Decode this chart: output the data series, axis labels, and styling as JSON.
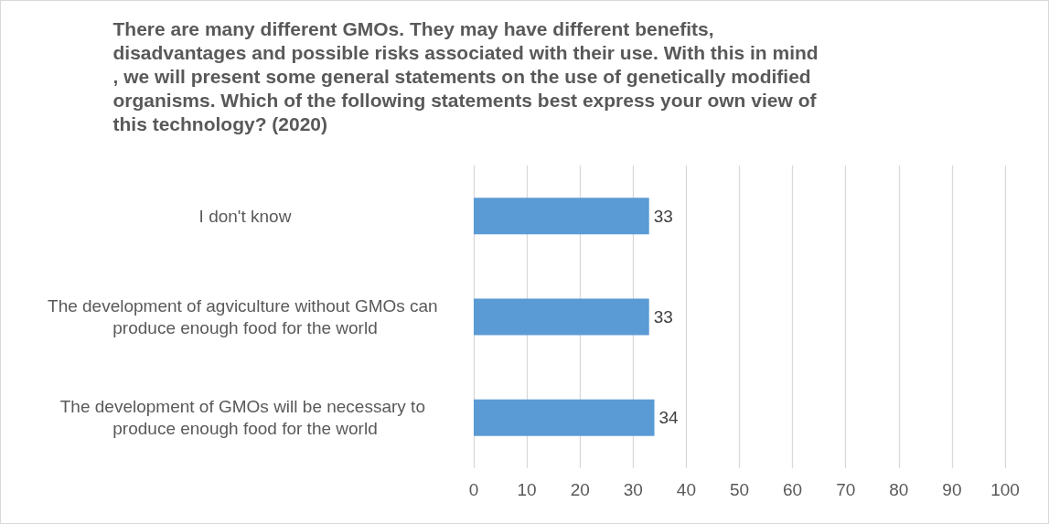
{
  "chart_data": {
    "type": "bar",
    "orientation": "horizontal",
    "title": "There are many different GMOs. They may have different benefits, disadvantages and possible risks associated with their use. With this in mind, we will present some general statements on the use of genetically modified organisms. Which of the following statements best express your own view of this technology? (2020)",
    "categories": [
      "I don't know",
      "The development of agviculture without GMOs can produce enough food for the world",
      "The development of GMOs will be necessary to produce enough food for the world"
    ],
    "values": [
      33,
      33,
      34
    ],
    "color": "#5b9bd5",
    "data_labels": true,
    "xlim": [
      0,
      100
    ],
    "xticks": [
      0,
      10,
      20,
      30,
      40,
      50,
      60,
      70,
      80,
      90,
      100
    ],
    "grid": "x"
  }
}
